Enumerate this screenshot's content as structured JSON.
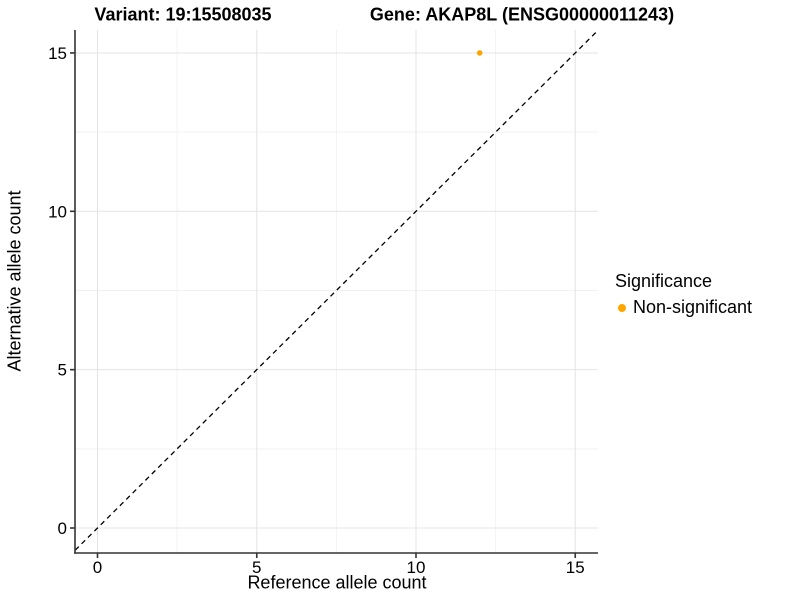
{
  "chart_data": {
    "type": "scatter",
    "title_variant": "Variant: 19:15508035",
    "title_gene": "Gene: AKAP8L (ENSG00000011243)",
    "xlabel": "Reference allele count",
    "ylabel": "Alternative allele count",
    "xticks": [
      0,
      5,
      10,
      15
    ],
    "yticks": [
      0,
      5,
      10,
      15
    ],
    "minor_xticks": [
      2.5,
      7.5,
      12.5
    ],
    "minor_yticks": [
      2.5,
      7.5,
      12.5
    ],
    "xlim": [
      -0.75,
      15.75
    ],
    "ylim": [
      -0.75,
      15.75
    ],
    "grid": {
      "major": true,
      "minor": true
    },
    "reference_line": {
      "type": "identity y=x",
      "style": "dashed",
      "color": "#000000"
    },
    "points": [
      {
        "x": 12,
        "y": 15,
        "series": "Non-significant"
      }
    ],
    "series": [
      {
        "name": "Non-significant",
        "color": "#FFA500"
      }
    ],
    "legend": {
      "title": "Significance",
      "position": "right",
      "entries": [
        {
          "label": "Non-significant",
          "color": "#FFA500"
        }
      ]
    },
    "colors": {
      "axis": "#333333",
      "tick": "#333333",
      "grid_major": "#E4E4E4",
      "grid_minor": "#F2F2F2",
      "text": "#000000",
      "background": "#FFFFFF"
    }
  }
}
